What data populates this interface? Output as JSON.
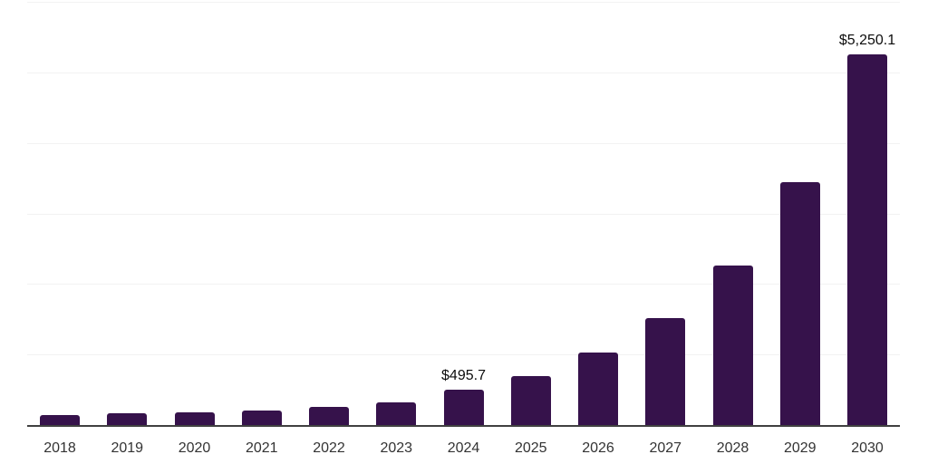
{
  "chart_data": {
    "type": "bar",
    "title": "",
    "xlabel": "",
    "ylabel": "",
    "categories": [
      "2018",
      "2019",
      "2020",
      "2021",
      "2022",
      "2023",
      "2024",
      "2025",
      "2026",
      "2027",
      "2028",
      "2029",
      "2030"
    ],
    "values": [
      135,
      167,
      176,
      210,
      252,
      325,
      495.7,
      695,
      1026,
      1510,
      2261,
      3440,
      5250.1
    ],
    "annotations": [
      {
        "category": "2024",
        "text": "$495.7"
      },
      {
        "category": "2030",
        "text": "$5,250.1"
      }
    ],
    "ylim": [
      0,
      6000
    ],
    "gridline_step": 1000,
    "grid": "horizontal-only",
    "legend_position": "none",
    "colors": {
      "bar": "#36124B",
      "gridline": "#f2f2f2",
      "axis_line": "#404040",
      "tick_text": "#333333",
      "label_text": "#0d0d0d",
      "background": "#ffffff"
    }
  }
}
